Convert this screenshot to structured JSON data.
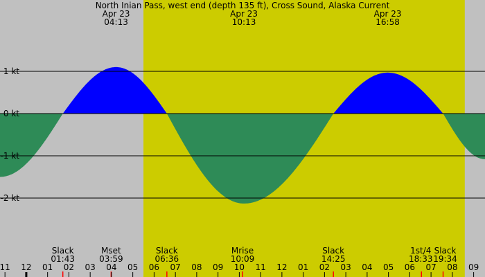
{
  "chart_data": {
    "type": "area",
    "title": "North Inian Pass, west end (depth 135 ft), Cross Sound, Alaska Current",
    "xlim": [
      "22:46",
      "21:32"
    ],
    "ylim": [
      -3.2,
      2.6
    ],
    "y_ticks": [
      {
        "v": 1,
        "label": "1 kt"
      },
      {
        "v": 0,
        "label": "0 kt"
      },
      {
        "v": -1,
        "label": "-1 kt"
      },
      {
        "v": -2,
        "label": "-2 kt"
      }
    ],
    "grid": true,
    "colors": {
      "flood": "#0000ff",
      "ebb": "#2e8b57",
      "day": "#cccc00",
      "night": "#c0c0c0",
      "marker": "#ff0000"
    },
    "daylight": [
      "05:30",
      "20:35"
    ],
    "extremes_labels": [
      {
        "date": "Apr 23",
        "time": "04:13"
      },
      {
        "date": "Apr 23",
        "time": "10:13"
      },
      {
        "date": "Apr 23",
        "time": "16:58"
      }
    ],
    "points": [
      {
        "time": "22:46",
        "kt": -1.5
      },
      {
        "time": "01:43",
        "kt": 0
      },
      {
        "time": "04:13",
        "kt": 1.1
      },
      {
        "time": "06:36",
        "kt": 0
      },
      {
        "time": "10:13",
        "kt": -2.13
      },
      {
        "time": "14:25",
        "kt": 0
      },
      {
        "time": "16:58",
        "kt": 0.97
      },
      {
        "time": "19:34",
        "kt": 0
      },
      {
        "time": "21:32",
        "kt": -1.08
      }
    ],
    "events": [
      {
        "name": "Slack",
        "time": "01:43"
      },
      {
        "name": "Mset",
        "time": "03:59"
      },
      {
        "name": "Slack",
        "time": "06:36"
      },
      {
        "name": "Mrise",
        "time": "10:09"
      },
      {
        "name": "Slack",
        "time": "14:25"
      },
      {
        "name": "1st/4",
        "time": "18:33"
      },
      {
        "name": "Slack",
        "time": "19:34"
      }
    ],
    "hour_labels": [
      "11",
      "12",
      "01",
      "02",
      "03",
      "04",
      "05",
      "06",
      "07",
      "08",
      "09",
      "10",
      "11",
      "12",
      "01",
      "02",
      "03",
      "04",
      "05",
      "06",
      "07",
      "08",
      "09"
    ]
  }
}
